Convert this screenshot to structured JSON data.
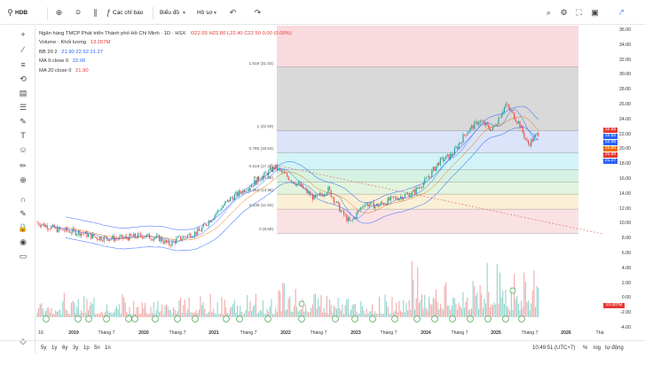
{
  "topbar": {
    "symbol": "HDB",
    "interval": "D",
    "indicators_label": "Các chỉ báo",
    "chart_type_label": "Biểu đồ",
    "template_label": "Hồ sơ"
  },
  "legend": {
    "title": "Ngân hàng TMCP Phát triển Thành phố Hồ Chí Minh · 1D · HSX",
    "ohlc": {
      "o": "O22.65",
      "h": "H22.80",
      "l": "L22.40",
      "c": "C22.50",
      "chg": "0.00 (0.00%)"
    },
    "volume_label": "Volume · Khối lượng",
    "volume_value": "13.207M",
    "bb_label": "BB 20 2",
    "bb_values": [
      "21.90",
      "22.52",
      "21.27"
    ],
    "ma9_label": "MA 9 close 0",
    "ma9_value": "22.06",
    "ma20_label": "MA 20 close 0",
    "ma20_value": "21.90"
  },
  "fib_levels": [
    {
      "label": "1.618 (31.03)",
      "value": 31.03
    },
    {
      "label": "1 (22.50)",
      "value": 22.5
    },
    {
      "label": "0.786 (19.54)",
      "value": 19.54
    },
    {
      "label": "0.618 (17.22)",
      "value": 17.22
    },
    {
      "label": "0.5 (15.59)",
      "value": 15.59
    },
    {
      "label": "0.382 (13.96)",
      "value": 13.96
    },
    {
      "label": "0.236 (11.94)",
      "value": 11.94
    },
    {
      "label": "0 (8.69)",
      "value": 8.69
    }
  ],
  "price_axis": {
    "labels": [
      "36.00",
      "34.00",
      "32.00",
      "30.00",
      "28.00",
      "26.00",
      "24.00",
      "22.00",
      "20.00",
      "18.00",
      "16.00",
      "14.00",
      "12.00",
      "10.00",
      "8.00",
      "6.00",
      "4.00",
      "2.00",
      "0.00",
      "-2.00",
      "-4.00"
    ],
    "tags": [
      {
        "text": "22.55",
        "color": "#e53935"
      },
      {
        "text": "22.52",
        "color": "#2962ff"
      },
      {
        "text": "22.06",
        "color": "#2962ff"
      },
      {
        "text": "21.90",
        "color": "#ef6c00"
      },
      {
        "text": "21.90",
        "color": "#e53935"
      },
      {
        "text": "21.27",
        "color": "#2962ff"
      },
      {
        "text": "13.207M",
        "color": "#e53935"
      }
    ]
  },
  "time_axis": {
    "labels": [
      "16",
      "2019",
      "Tháng 7",
      "2020",
      "Tháng 7",
      "2021",
      "Tháng 7",
      "2022",
      "Tháng 7",
      "2023",
      "Tháng 7",
      "2024",
      "Tháng 7",
      "2025",
      "Tháng 7",
      "2026",
      "Thá"
    ]
  },
  "bottombar": {
    "ranges": [
      "5y",
      "1y",
      "6y",
      "3y",
      "1p",
      "5n",
      "1n"
    ],
    "time": "10:49:51 (UTC+7)",
    "percent": "%",
    "log": "log",
    "auto": "tự động"
  },
  "colors": {
    "fib_top": "#f7cdd3",
    "fib_gray": "#c9c9c9",
    "fib_blue": "#c9d6f7",
    "up": "#26a69a",
    "down": "#ef5350"
  }
}
